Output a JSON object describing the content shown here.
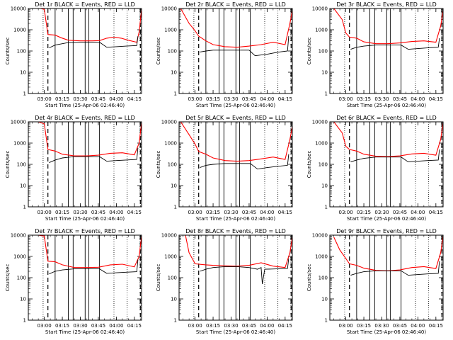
{
  "figure": {
    "title_template": "{det} BLACK = Events, RED = LLD",
    "xlabel": "Start Time (25-Apr-06 02:46:40)",
    "ylabel": "Counts/sec",
    "colors": {
      "events": "#000000",
      "lld": "#ff0000",
      "axes": "#000000",
      "background": "#ffffff"
    }
  },
  "chart_data": [
    {
      "type": "line",
      "title": "Det 1r BLACK = Events, RED = LLD",
      "xlabel": "Start Time (25-Apr-06 02:46:40)",
      "ylabel": "Counts/sec",
      "xlim": [
        "02:46:40",
        "04:21:00"
      ],
      "ylim": [
        1,
        10000
      ],
      "yscale": "log",
      "xticks": [
        "03:00",
        "03:15",
        "03:30",
        "03:45",
        "04:00",
        "04:15"
      ],
      "yticks": [
        "1",
        "10",
        "100",
        "1000",
        "10000"
      ],
      "solid_vlines": [
        "03:09",
        "03:20",
        "03:24",
        "03:34",
        "03:37",
        "03:46"
      ],
      "dotted_vlines": [
        "02:59",
        "03:58",
        "04:09"
      ],
      "dashed_vlines": [
        "03:03",
        "04:20"
      ],
      "series": [
        {
          "name": "LLD",
          "color": "#ff0000",
          "x": [
            "02:57",
            "03:00",
            "03:03",
            "03:09",
            "03:14",
            "03:20",
            "03:30",
            "03:40",
            "03:46",
            "03:52",
            "03:58",
            "04:04",
            "04:10",
            "04:17",
            "04:19",
            "04:21"
          ],
          "y": [
            10000,
            9000,
            600,
            560,
            420,
            320,
            300,
            300,
            310,
            400,
            450,
            400,
            320,
            260,
            800,
            9000
          ]
        },
        {
          "name": "Events",
          "color": "#000000",
          "x": [
            "03:04",
            "03:09",
            "03:15",
            "03:20",
            "03:30",
            "03:40",
            "03:46",
            "03:52",
            "04:00",
            "04:08",
            "04:17",
            "04:18"
          ],
          "y": [
            140,
            190,
            220,
            250,
            260,
            260,
            260,
            150,
            160,
            170,
            180,
            500
          ]
        }
      ]
    },
    {
      "type": "line",
      "title": "Det 2r BLACK = Events, RED = LLD",
      "xlabel": "Start Time (25-Apr-06 02:46:40)",
      "ylabel": "Counts/sec",
      "xlim": [
        "02:46:40",
        "04:21:00"
      ],
      "ylim": [
        1,
        10000
      ],
      "yscale": "log",
      "xticks": [
        "03:00",
        "03:15",
        "03:30",
        "03:45",
        "04:00",
        "04:15"
      ],
      "yticks": [
        "1",
        "10",
        "100",
        "1000",
        "10000"
      ],
      "solid_vlines": [
        "03:09",
        "03:20",
        "03:24",
        "03:34",
        "03:37",
        "03:46"
      ],
      "dotted_vlines": [
        "02:59",
        "03:58",
        "04:09"
      ],
      "dashed_vlines": [
        "03:03",
        "04:20"
      ],
      "series": [
        {
          "name": "LLD",
          "color": "#ff0000",
          "x": [
            "02:48",
            "02:55",
            "03:00",
            "03:03",
            "03:09",
            "03:15",
            "03:25",
            "03:35",
            "03:45",
            "03:55",
            "04:05",
            "04:15",
            "04:19",
            "04:21"
          ],
          "y": [
            10000,
            2000,
            900,
            500,
            300,
            200,
            160,
            150,
            170,
            200,
            260,
            200,
            2000,
            8000
          ]
        },
        {
          "name": "Events",
          "color": "#000000",
          "x": [
            "03:04",
            "03:09",
            "03:15",
            "03:25",
            "03:35",
            "03:45",
            "03:50",
            "04:00",
            "04:05",
            "04:10",
            "04:17",
            "04:18"
          ],
          "y": [
            90,
            100,
            110,
            110,
            110,
            110,
            60,
            70,
            80,
            90,
            100,
            500
          ]
        }
      ]
    },
    {
      "type": "line",
      "title": "Det 3r BLACK = Events, RED = LLD",
      "xlabel": "Start Time (25-Apr-06 02:46:40)",
      "ylabel": "Counts/sec",
      "xlim": [
        "02:46:40",
        "04:21:00"
      ],
      "ylim": [
        1,
        10000
      ],
      "yscale": "log",
      "xticks": [
        "03:00",
        "03:15",
        "03:30",
        "03:45",
        "04:00",
        "04:15"
      ],
      "yticks": [
        "1",
        "10",
        "100",
        "1000",
        "10000"
      ],
      "solid_vlines": [
        "03:09",
        "03:20",
        "03:24",
        "03:34",
        "03:37",
        "03:46"
      ],
      "dotted_vlines": [
        "02:59",
        "03:58",
        "04:09"
      ],
      "dashed_vlines": [
        "03:03",
        "04:20"
      ],
      "series": [
        {
          "name": "LLD",
          "color": "#ff0000",
          "x": [
            "02:50",
            "02:57",
            "03:00",
            "03:03",
            "03:09",
            "03:15",
            "03:25",
            "03:35",
            "03:45",
            "03:55",
            "04:05",
            "04:15",
            "04:19",
            "04:21"
          ],
          "y": [
            10000,
            3000,
            700,
            450,
            400,
            270,
            220,
            220,
            240,
            280,
            300,
            260,
            1500,
            8000
          ]
        },
        {
          "name": "Events",
          "color": "#000000",
          "x": [
            "03:04",
            "03:09",
            "03:15",
            "03:25",
            "03:35",
            "03:46",
            "03:52",
            "04:00",
            "04:08",
            "04:17",
            "04:18"
          ],
          "y": [
            120,
            150,
            170,
            190,
            190,
            190,
            120,
            130,
            140,
            150,
            400
          ]
        }
      ]
    },
    {
      "type": "line",
      "title": "Det 4r BLACK = Events, RED = LLD",
      "xlabel": "Start Time (25-Apr-06 02:46:40)",
      "ylabel": "Counts/sec",
      "xlim": [
        "02:46:40",
        "04:21:00"
      ],
      "ylim": [
        1,
        10000
      ],
      "yscale": "log",
      "xticks": [
        "03:00",
        "03:15",
        "03:30",
        "03:45",
        "04:00",
        "04:15"
      ],
      "yticks": [
        "1",
        "10",
        "100",
        "1000",
        "10000"
      ],
      "solid_vlines": [
        "03:09",
        "03:20",
        "03:24",
        "03:34",
        "03:37",
        "03:46"
      ],
      "dotted_vlines": [
        "02:59",
        "03:58",
        "04:09"
      ],
      "dashed_vlines": [
        "03:03",
        "04:20"
      ],
      "series": [
        {
          "name": "LLD",
          "color": "#ff0000",
          "x": [
            "02:55",
            "03:00",
            "03:03",
            "03:09",
            "03:15",
            "03:25",
            "03:35",
            "03:45",
            "03:55",
            "04:05",
            "04:15",
            "04:19",
            "04:21"
          ],
          "y": [
            10000,
            8000,
            500,
            420,
            300,
            250,
            250,
            270,
            330,
            350,
            280,
            1000,
            9000
          ]
        },
        {
          "name": "Events",
          "color": "#000000",
          "x": [
            "03:04",
            "03:09",
            "03:15",
            "03:25",
            "03:35",
            "03:46",
            "03:52",
            "04:00",
            "04:08",
            "04:17",
            "04:18"
          ],
          "y": [
            120,
            160,
            200,
            230,
            230,
            230,
            140,
            150,
            160,
            170,
            600
          ]
        }
      ]
    },
    {
      "type": "line",
      "title": "Det 5r BLACK = Events, RED = LLD",
      "xlabel": "Start Time (25-Apr-06 02:46:40)",
      "ylabel": "Counts/sec",
      "xlim": [
        "02:46:40",
        "04:21:00"
      ],
      "ylim": [
        1,
        10000
      ],
      "yscale": "log",
      "xticks": [
        "03:00",
        "03:15",
        "03:30",
        "03:45",
        "04:00",
        "04:15"
      ],
      "yticks": [
        "1",
        "10",
        "100",
        "1000",
        "10000"
      ],
      "solid_vlines": [
        "03:09",
        "03:20",
        "03:24",
        "03:34",
        "03:37",
        "03:46"
      ],
      "dotted_vlines": [
        "02:59",
        "03:58",
        "04:09"
      ],
      "dashed_vlines": [
        "03:03",
        "04:20"
      ],
      "series": [
        {
          "name": "LLD",
          "color": "#ff0000",
          "x": [
            "02:48",
            "02:55",
            "03:00",
            "03:03",
            "03:09",
            "03:15",
            "03:25",
            "03:35",
            "03:45",
            "03:55",
            "04:05",
            "04:15",
            "04:19",
            "04:21"
          ],
          "y": [
            10000,
            2500,
            900,
            400,
            300,
            200,
            150,
            140,
            150,
            180,
            220,
            170,
            1500,
            6000
          ]
        },
        {
          "name": "Events",
          "color": "#000000",
          "x": [
            "03:04",
            "03:09",
            "03:15",
            "03:25",
            "03:35",
            "03:46",
            "03:52",
            "04:00",
            "04:08",
            "04:17",
            "04:18"
          ],
          "y": [
            70,
            90,
            100,
            110,
            110,
            110,
            60,
            70,
            80,
            90,
            300
          ]
        }
      ]
    },
    {
      "type": "line",
      "title": "Det 6r BLACK = Events, RED = LLD",
      "xlabel": "Start Time (25-Apr-06 02:46:40)",
      "ylabel": "Counts/sec",
      "xlim": [
        "02:46:40",
        "04:21:00"
      ],
      "ylim": [
        1,
        10000
      ],
      "yscale": "log",
      "xticks": [
        "03:00",
        "03:15",
        "03:30",
        "03:45",
        "04:00",
        "04:15"
      ],
      "yticks": [
        "1",
        "10",
        "100",
        "1000",
        "10000"
      ],
      "solid_vlines": [
        "03:09",
        "03:20",
        "03:24",
        "03:34",
        "03:37",
        "03:46"
      ],
      "dotted_vlines": [
        "02:59",
        "03:58",
        "04:09"
      ],
      "dashed_vlines": [
        "03:03",
        "04:20"
      ],
      "series": [
        {
          "name": "LLD",
          "color": "#ff0000",
          "x": [
            "02:50",
            "02:57",
            "03:00",
            "03:03",
            "03:09",
            "03:15",
            "03:25",
            "03:35",
            "03:45",
            "03:55",
            "04:05",
            "04:15",
            "04:19",
            "04:21"
          ],
          "y": [
            10000,
            3000,
            700,
            500,
            420,
            300,
            240,
            230,
            250,
            310,
            330,
            270,
            1500,
            9000
          ]
        },
        {
          "name": "Events",
          "color": "#000000",
          "x": [
            "03:04",
            "03:09",
            "03:15",
            "03:25",
            "03:35",
            "03:46",
            "03:52",
            "04:00",
            "04:08",
            "04:17",
            "04:18"
          ],
          "y": [
            130,
            160,
            190,
            220,
            220,
            220,
            130,
            140,
            150,
            160,
            500
          ]
        }
      ]
    },
    {
      "type": "line",
      "title": "Det 7r BLACK = Events, RED = LLD",
      "xlabel": "Start Time (25-Apr-06 02:46:40)",
      "ylabel": "Counts/sec",
      "xlim": [
        "02:46:40",
        "04:21:00"
      ],
      "ylim": [
        1,
        10000
      ],
      "yscale": "log",
      "xticks": [
        "03:00",
        "03:15",
        "03:30",
        "03:45",
        "04:00",
        "04:15"
      ],
      "yticks": [
        "1",
        "10",
        "100",
        "1000",
        "10000"
      ],
      "solid_vlines": [
        "03:09",
        "03:20",
        "03:24",
        "03:34",
        "03:37",
        "03:46"
      ],
      "dotted_vlines": [
        "02:59",
        "03:58",
        "04:09"
      ],
      "dashed_vlines": [
        "03:03",
        "04:20"
      ],
      "series": [
        {
          "name": "LLD",
          "color": "#ff0000",
          "x": [
            "02:55",
            "03:00",
            "03:03",
            "03:09",
            "03:15",
            "03:25",
            "03:35",
            "03:45",
            "03:55",
            "04:05",
            "04:15",
            "04:19",
            "04:21"
          ],
          "y": [
            10000,
            9000,
            600,
            560,
            400,
            300,
            300,
            310,
            400,
            430,
            320,
            1000,
            9000
          ]
        },
        {
          "name": "Events",
          "color": "#000000",
          "x": [
            "03:04",
            "03:09",
            "03:15",
            "03:25",
            "03:35",
            "03:46",
            "03:52",
            "04:00",
            "04:08",
            "04:17",
            "04:18"
          ],
          "y": [
            150,
            200,
            230,
            260,
            260,
            260,
            160,
            170,
            180,
            190,
            700
          ]
        }
      ]
    },
    {
      "type": "line",
      "title": "Det 8r BLACK = Events, RED = LLD",
      "xlabel": "Start Time (25-Apr-06 02:46:40)",
      "ylabel": "Counts/sec",
      "xlim": [
        "02:46:40",
        "04:21:00"
      ],
      "ylim": [
        1,
        10000
      ],
      "yscale": "log",
      "xticks": [
        "03:00",
        "03:15",
        "03:30",
        "03:45",
        "04:00",
        "04:15"
      ],
      "yticks": [
        "1",
        "10",
        "100",
        "1000",
        "10000"
      ],
      "solid_vlines": [
        "03:09",
        "03:20",
        "03:24",
        "03:34",
        "03:37",
        "03:46"
      ],
      "dotted_vlines": [
        "02:59",
        "03:58",
        "04:09"
      ],
      "dashed_vlines": [
        "03:03",
        "04:20"
      ],
      "series": [
        {
          "name": "LLD",
          "color": "#ff0000",
          "x": [
            "02:48",
            "02:52",
            "02:55",
            "03:00",
            "03:05",
            "03:09",
            "03:15",
            "03:25",
            "03:35",
            "03:45",
            "03:55",
            "04:05",
            "04:15",
            "04:19",
            "04:21"
          ],
          "y": [
            10000,
            10000,
            1500,
            450,
            420,
            400,
            380,
            360,
            350,
            380,
            500,
            350,
            300,
            1500,
            8000
          ]
        },
        {
          "name": "Events",
          "color": "#000000",
          "x": [
            "03:04",
            "03:09",
            "03:15",
            "03:25",
            "03:35",
            "03:45",
            "03:52",
            "03:55",
            "03:56",
            "03:58",
            "04:08",
            "04:17",
            "04:18"
          ],
          "y": [
            200,
            250,
            300,
            330,
            330,
            300,
            250,
            300,
            50,
            250,
            260,
            270,
            800
          ]
        }
      ]
    },
    {
      "type": "line",
      "title": "Det 9r BLACK = Events, RED = LLD",
      "xlabel": "Start Time (25-Apr-06 02:46:40)",
      "ylabel": "Counts/sec",
      "xlim": [
        "02:46:40",
        "04:21:00"
      ],
      "ylim": [
        1,
        10000
      ],
      "yscale": "log",
      "xticks": [
        "03:00",
        "03:15",
        "03:30",
        "03:45",
        "04:00",
        "04:15"
      ],
      "yticks": [
        "1",
        "10",
        "100",
        "1000",
        "10000"
      ],
      "solid_vlines": [
        "03:09",
        "03:20",
        "03:24",
        "03:34",
        "03:37",
        "03:46"
      ],
      "dotted_vlines": [
        "02:59",
        "03:58",
        "04:09"
      ],
      "dashed_vlines": [
        "03:03",
        "04:20"
      ],
      "series": [
        {
          "name": "LLD",
          "color": "#ff0000",
          "x": [
            "02:50",
            "02:55",
            "03:00",
            "03:03",
            "03:09",
            "03:15",
            "03:25",
            "03:35",
            "03:45",
            "03:55",
            "04:05",
            "04:15",
            "04:19",
            "04:21"
          ],
          "y": [
            8000,
            2000,
            800,
            450,
            380,
            280,
            220,
            210,
            230,
            300,
            330,
            270,
            1500,
            9000
          ]
        },
        {
          "name": "Events",
          "color": "#000000",
          "x": [
            "03:04",
            "03:09",
            "03:15",
            "03:25",
            "03:35",
            "03:46",
            "03:52",
            "04:00",
            "04:08",
            "04:17",
            "04:18"
          ],
          "y": [
            130,
            160,
            190,
            210,
            210,
            210,
            130,
            140,
            150,
            160,
            600
          ]
        }
      ]
    }
  ]
}
